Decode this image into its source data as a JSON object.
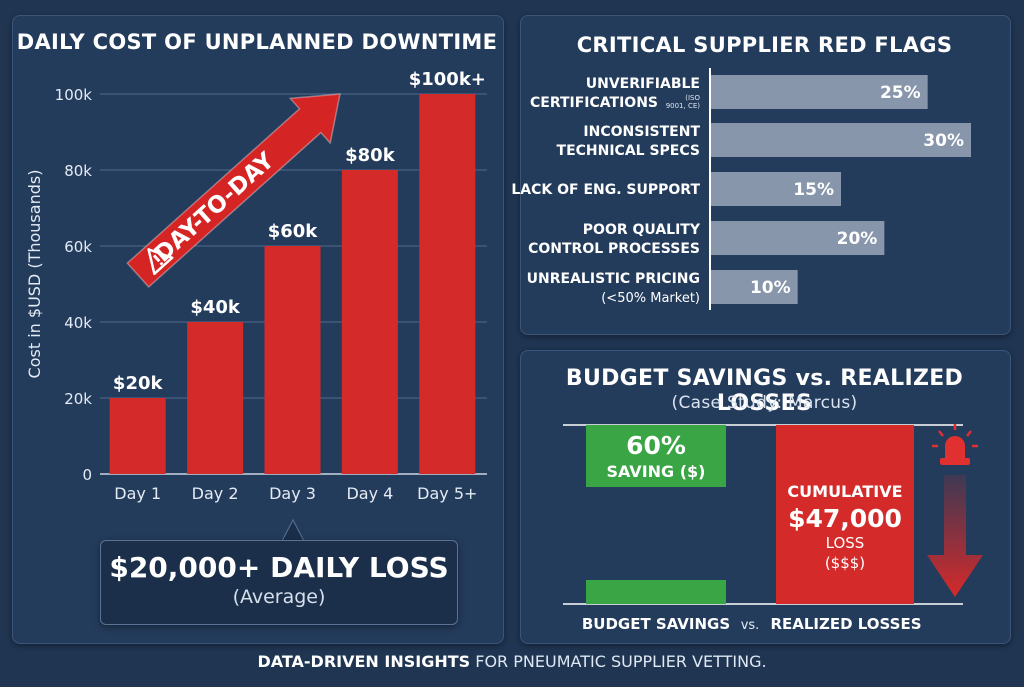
{
  "colors": {
    "bar_red": "#d42a2a",
    "bar_grey": "#8796ab",
    "green": "#3aa545",
    "bg": "#1f3552"
  },
  "chart_data": [
    {
      "type": "bar",
      "title": "DAILY COST OF UNPLANNED DOWNTIME",
      "ylabel": "Cost in $USD (Thousands)",
      "xlabel": "",
      "categories": [
        "Day 1",
        "Day 2",
        "Day 3",
        "Day 4",
        "Day 5+"
      ],
      "values": [
        20,
        40,
        60,
        80,
        100
      ],
      "data_labels": [
        "$20k",
        "$40k",
        "$60k",
        "$80k",
        "$100k+"
      ],
      "ylim": [
        0,
        100
      ],
      "yticks": [
        0,
        20,
        40,
        60,
        80,
        100
      ],
      "ytick_labels": [
        "0",
        "20k",
        "40k",
        "60k",
        "80k",
        "100k"
      ],
      "grid": true,
      "arrow_label": "DAY-TO-DAY",
      "arrow_icon": "warning-triangle-icon"
    },
    {
      "type": "bar",
      "orientation": "horizontal",
      "title": "CRITICAL SUPPLIER RED FLAGS",
      "categories": [
        {
          "line1": "UNVERIFIABLE",
          "line2": "CERTIFICATIONS",
          "note1": "(ISO",
          "note2": "9001, CE)"
        },
        {
          "line1": "INCONSISTENT",
          "line2": "TECHNICAL SPECS"
        },
        {
          "line1": "LACK OF ENG. SUPPORT"
        },
        {
          "line1": "POOR QUALITY",
          "line2": "CONTROL PROCESSES"
        },
        {
          "line1": "UNREALISTIC PRICING",
          "line2": "(<50% Market)"
        }
      ],
      "values": [
        25,
        30,
        15,
        20,
        10
      ],
      "data_labels": [
        "25%",
        "30%",
        "15%",
        "20%",
        "10%"
      ],
      "unit": "%"
    },
    {
      "type": "bar",
      "title": "BUDGET SAVINGS vs. REALIZED LOSSES",
      "subtitle": "(Case Study: Marcus)",
      "categories": [
        "BUDGET SAVINGS",
        "REALIZED LOSSES"
      ],
      "vs_label": "vs.",
      "savings": {
        "label_pct": "60%",
        "label_text": "SAVING ($)",
        "value_pct": 60
      },
      "losses": {
        "line1": "CUMULATIVE",
        "amount": "$47,000",
        "line3": "LOSS",
        "line4": "($$$)",
        "value_usd": 47000
      },
      "icon": "alarm-siren-icon"
    }
  ],
  "callout": {
    "main": "$20,000+ DAILY LOSS",
    "sub": "(Average)"
  },
  "footer": {
    "bold": "DATA-DRIVEN INSIGHTS",
    "rest": " FOR PNEUMATIC SUPPLIER VETTING."
  }
}
